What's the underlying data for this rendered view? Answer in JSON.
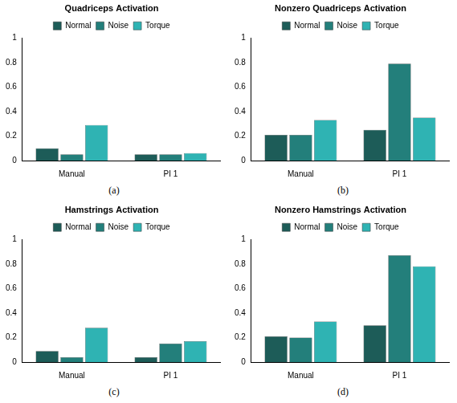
{
  "chart_data": [
    {
      "type": "bar",
      "title": "Quadriceps Activation",
      "caption": "(a)",
      "categories": [
        "Manual",
        "PI 1"
      ],
      "series": [
        {
          "name": "Normal",
          "color": "#1d5c58",
          "values": [
            0.1,
            0.05
          ]
        },
        {
          "name": "Noise",
          "color": "#237f7b",
          "values": [
            0.05,
            0.05
          ]
        },
        {
          "name": "Torque",
          "color": "#2fb3b3",
          "values": [
            0.29,
            0.06
          ]
        }
      ],
      "ylim": [
        0,
        1
      ],
      "yticks": [
        0,
        0.2,
        0.4,
        0.6,
        0.8,
        1
      ],
      "grid": false,
      "legend": "top"
    },
    {
      "type": "bar",
      "title": "Nonzero Quadriceps Activation",
      "caption": "(b)",
      "categories": [
        "Manual",
        "PI 1"
      ],
      "series": [
        {
          "name": "Normal",
          "color": "#1d5c58",
          "values": [
            0.21,
            0.25
          ]
        },
        {
          "name": "Noise",
          "color": "#237f7b",
          "values": [
            0.21,
            0.79
          ]
        },
        {
          "name": "Torque",
          "color": "#2fb3b3",
          "values": [
            0.33,
            0.35
          ]
        }
      ],
      "ylim": [
        0,
        1
      ],
      "yticks": [
        0,
        0.2,
        0.4,
        0.6,
        0.8,
        1
      ],
      "grid": false,
      "legend": "top"
    },
    {
      "type": "bar",
      "title": "Hamstrings Activation",
      "caption": "(c)",
      "categories": [
        "Manual",
        "PI 1"
      ],
      "series": [
        {
          "name": "Normal",
          "color": "#1d5c58",
          "values": [
            0.09,
            0.04
          ]
        },
        {
          "name": "Noise",
          "color": "#237f7b",
          "values": [
            0.04,
            0.15
          ]
        },
        {
          "name": "Torque",
          "color": "#2fb3b3",
          "values": [
            0.28,
            0.17
          ]
        }
      ],
      "ylim": [
        0,
        1
      ],
      "yticks": [
        0,
        0.2,
        0.4,
        0.6,
        0.8,
        1
      ],
      "grid": false,
      "legend": "top"
    },
    {
      "type": "bar",
      "title": "Nonzero Hamstrings Activation",
      "caption": "(d)",
      "categories": [
        "Manual",
        "PI 1"
      ],
      "series": [
        {
          "name": "Normal",
          "color": "#1d5c58",
          "values": [
            0.21,
            0.3
          ]
        },
        {
          "name": "Noise",
          "color": "#237f7b",
          "values": [
            0.2,
            0.87
          ]
        },
        {
          "name": "Torque",
          "color": "#2fb3b3",
          "values": [
            0.33,
            0.78
          ]
        }
      ],
      "ylim": [
        0,
        1
      ],
      "yticks": [
        0,
        0.2,
        0.4,
        0.6,
        0.8,
        1
      ],
      "grid": false,
      "legend": "top"
    }
  ]
}
